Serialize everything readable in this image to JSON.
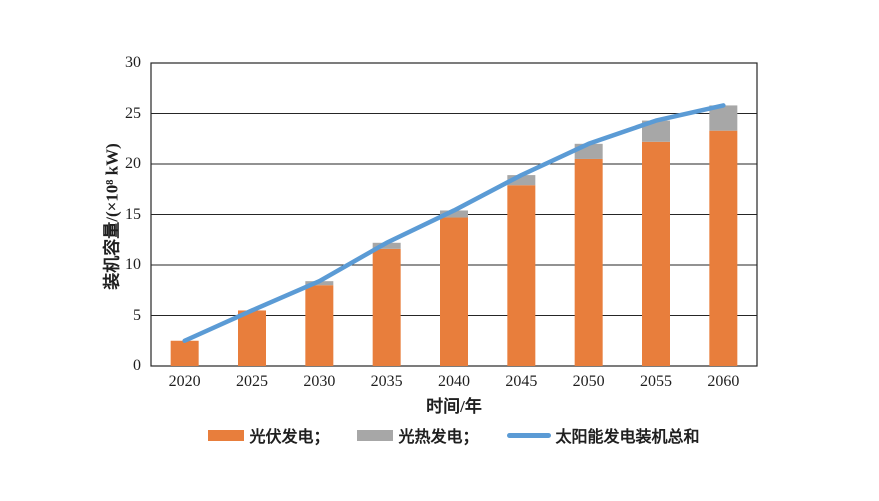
{
  "figure": {
    "background": "#ffffff"
  },
  "chart_data": {
    "type": "bar",
    "subtype": "stacked-bar-with-line-overlay",
    "title": "",
    "categories": [
      "2020",
      "2025",
      "2030",
      "2035",
      "2040",
      "2045",
      "2050",
      "2055",
      "2060"
    ],
    "series": [
      {
        "name": "光伏发电",
        "type": "bar",
        "stack": "capacity",
        "color": "#E87E3C",
        "values": [
          2.5,
          5.5,
          8.0,
          11.6,
          14.7,
          17.9,
          20.5,
          22.2,
          23.3
        ]
      },
      {
        "name": "光热发电",
        "type": "bar",
        "stack": "capacity",
        "color": "#A7A7A7",
        "values": [
          0,
          0,
          0.4,
          0.6,
          0.7,
          1.0,
          1.5,
          2.1,
          2.5
        ]
      },
      {
        "name": "太阳能发电装机总和",
        "type": "line",
        "color": "#5B9BD5",
        "values": [
          2.5,
          5.5,
          8.4,
          12.2,
          15.4,
          18.9,
          22.0,
          24.3,
          25.8
        ]
      }
    ],
    "xlabel": "时间/年",
    "ylabel": "装机容量/(×10⁸ kW)",
    "ylim": [
      0,
      30
    ],
    "yticks": [
      0,
      5,
      10,
      15,
      20,
      25,
      30
    ],
    "grid": true,
    "axis_color": "#262626",
    "legend_position": "bottom"
  },
  "legend": {
    "items": [
      {
        "label": "光伏发电；",
        "swatch": "rect",
        "color": "#E87E3C"
      },
      {
        "label": "光热发电；",
        "swatch": "rect",
        "color": "#A7A7A7"
      },
      {
        "label": "太阳能发电装机总和",
        "swatch": "line",
        "color": "#5B9BD5"
      }
    ]
  }
}
